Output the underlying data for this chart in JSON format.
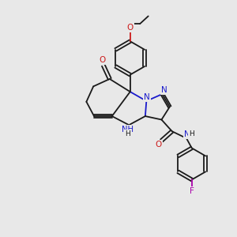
{
  "background_color": "#e8e8e8",
  "bond_color": "#1a1a1a",
  "nitrogen_color": "#1a1acc",
  "oxygen_color": "#cc1a1a",
  "fluorine_color": "#aa00aa",
  "figsize": [
    3.0,
    3.0
  ],
  "dpi": 100,
  "xlim": [
    0,
    10
  ],
  "ylim": [
    0,
    10
  ]
}
